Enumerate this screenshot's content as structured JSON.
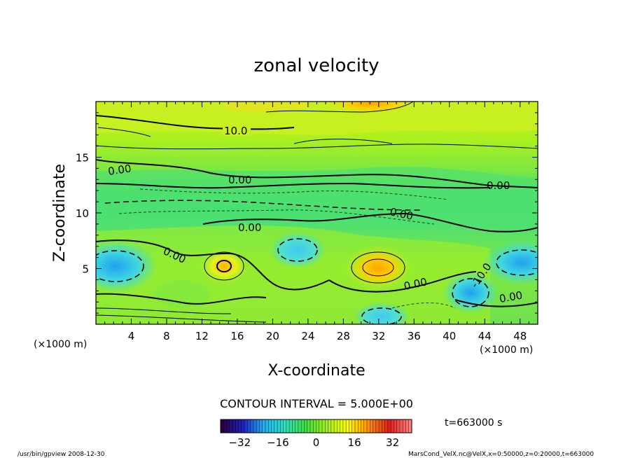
{
  "chart_data": {
    "type": "heatmap",
    "title": "zonal velocity",
    "xlabel": "X-coordinate",
    "ylabel": "Z-coordinate",
    "x_unit": "(×1000 m)",
    "y_unit": "(×1000 m)",
    "xlim": [
      0,
      50
    ],
    "ylim": [
      0,
      20
    ],
    "x_ticks": [
      "4",
      "8",
      "12",
      "16",
      "20",
      "24",
      "28",
      "32",
      "36",
      "40",
      "44",
      "48"
    ],
    "y_ticks": [
      "5",
      "10",
      "15"
    ],
    "contour_interval_text": "CONTOUR INTERVAL = 5.000E+00",
    "contour_labels": [
      "10.0",
      "0.00",
      "0.00",
      "0.00",
      "0.00",
      "0.00",
      "0.00",
      "0.00",
      "-10.0",
      "0.00"
    ],
    "colorbar": {
      "min": -40,
      "max": 40,
      "ticks": [
        "-32",
        "-16",
        "0",
        "16",
        "32"
      ],
      "colors": [
        "#2a0040",
        "#2020c0",
        "#20b0f0",
        "#30e0c0",
        "#40e040",
        "#a0f020",
        "#ffff00",
        "#ff9000",
        "#e02020",
        "#ff8080"
      ]
    },
    "time_label": "t=663000 s",
    "footer_left": "/usr/bin/gpview   2008-12-30",
    "footer_right": "MarsCond_VelX.nc@VelX,x=0:50000,z=0:20000,t=663000",
    "features": [
      {
        "label": "max",
        "x": 31.5,
        "z": 5.2,
        "value": 25
      },
      {
        "label": "max",
        "x": 14.5,
        "z": 5.0,
        "value": 15
      },
      {
        "label": "top max",
        "x": 31,
        "z": 19.5,
        "value": 25
      },
      {
        "label": "min",
        "x": 1,
        "z": 5.2,
        "value": -20
      },
      {
        "label": "min",
        "x": 48.5,
        "z": 5.5,
        "value": -20
      },
      {
        "label": "min",
        "x": 43,
        "z": 3,
        "value": -15
      },
      {
        "label": "min",
        "x": 32.5,
        "z": 1,
        "value": -15
      },
      {
        "label": "min",
        "x": 23,
        "z": 6.5,
        "value": -10
      }
    ]
  }
}
